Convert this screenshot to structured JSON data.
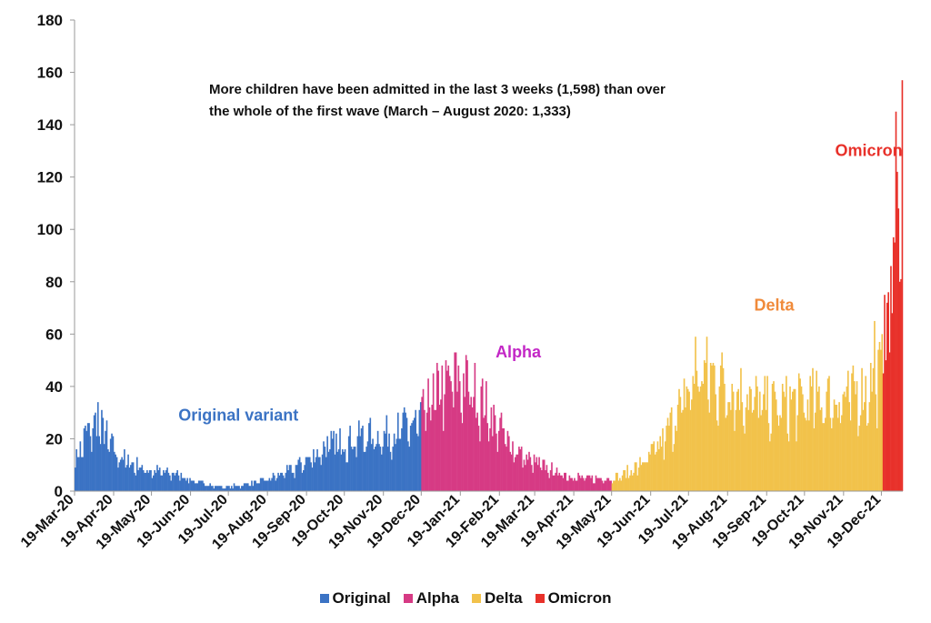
{
  "chart_data": {
    "type": "bar",
    "title": "",
    "xlabel": "",
    "ylabel": "",
    "ylim": [
      0,
      180
    ],
    "yticks": [
      "0",
      "20",
      "40",
      "60",
      "80",
      "100",
      "120",
      "140",
      "160",
      "180"
    ],
    "x_tick_labels": [
      "19-Mar-20",
      "19-Apr-20",
      "19-May-20",
      "19-Jun-20",
      "19-Jul-20",
      "19-Aug-20",
      "19-Sep-20",
      "19-Oct-20",
      "19-Nov-20",
      "19-Dec-20",
      "19-Jan-21",
      "19-Feb-21",
      "19-Mar-21",
      "19-Apr-21",
      "19-May-21",
      "19-Jun-21",
      "19-Jul-21",
      "19-Aug-21",
      "19-Sep-21",
      "19-Oct-21",
      "19-Nov-21",
      "19-Dec-21"
    ],
    "start_date": "2020-03-19",
    "end_date": "2022-01-04",
    "series": [
      {
        "name": "Original",
        "color": "#3b73c4",
        "start": "2020-03-19",
        "end": "2020-12-18",
        "points": [
          [
            0,
            12
          ],
          [
            8,
            22
          ],
          [
            18,
            28
          ],
          [
            32,
            15
          ],
          [
            45,
            11
          ],
          [
            60,
            8
          ],
          [
            80,
            7
          ],
          [
            95,
            4
          ],
          [
            110,
            2
          ],
          [
            125,
            2
          ],
          [
            140,
            3
          ],
          [
            155,
            5
          ],
          [
            170,
            8
          ],
          [
            185,
            13
          ],
          [
            200,
            18
          ],
          [
            215,
            20
          ],
          [
            230,
            22
          ],
          [
            245,
            22
          ],
          [
            255,
            24
          ],
          [
            274,
            28
          ]
        ]
      },
      {
        "name": "Alpha",
        "color": "#d63a84",
        "start": "2020-12-19",
        "end": "2021-05-18",
        "points": [
          [
            275,
            30
          ],
          [
            285,
            38
          ],
          [
            295,
            43
          ],
          [
            305,
            44
          ],
          [
            315,
            41
          ],
          [
            325,
            34
          ],
          [
            335,
            26
          ],
          [
            345,
            19
          ],
          [
            355,
            14
          ],
          [
            365,
            11
          ],
          [
            375,
            9
          ],
          [
            385,
            7
          ],
          [
            395,
            6
          ],
          [
            405,
            5
          ],
          [
            415,
            5
          ],
          [
            425,
            5
          ]
        ]
      },
      {
        "name": "Delta",
        "color": "#f2c24b",
        "start": "2021-05-19",
        "end": "2021-12-19",
        "points": [
          [
            426,
            5
          ],
          [
            436,
            7
          ],
          [
            446,
            10
          ],
          [
            456,
            14
          ],
          [
            466,
            20
          ],
          [
            476,
            30
          ],
          [
            486,
            40
          ],
          [
            496,
            48
          ],
          [
            506,
            46
          ],
          [
            516,
            43
          ],
          [
            526,
            40
          ],
          [
            536,
            37
          ],
          [
            546,
            35
          ],
          [
            556,
            34
          ],
          [
            566,
            35
          ],
          [
            576,
            36
          ],
          [
            586,
            37
          ],
          [
            596,
            37
          ],
          [
            606,
            37
          ],
          [
            616,
            38
          ],
          [
            626,
            40
          ],
          [
            636,
            45
          ],
          [
            640,
            48
          ],
          [
            645,
            53
          ]
        ]
      },
      {
        "name": "Omicron",
        "color": "#e8312a",
        "start": "2021-12-20",
        "end": "2022-01-04",
        "points": [
          [
            641,
            65
          ],
          [
            644,
            68
          ],
          [
            647,
            85
          ],
          [
            650,
            100
          ],
          [
            653,
            115
          ],
          [
            656,
            120
          ],
          [
            658,
            125
          ],
          [
            660,
            128
          ]
        ]
      }
    ],
    "peaks": [
      {
        "series": "Original",
        "day": 18,
        "value": 34
      },
      {
        "series": "Alpha",
        "day": 302,
        "value": 53
      },
      {
        "series": "Delta",
        "day": 492,
        "value": 59
      },
      {
        "series": "Delta",
        "day": 634,
        "value": 65
      },
      {
        "series": "Omicron",
        "day": 651,
        "value": 145
      },
      {
        "series": "Omicron",
        "day": 656,
        "value": 157
      }
    ],
    "annotation": "More children have been admitted in the last 3 weeks (1,598) than over the whole of the first wave (March – August 2020: 1,333)",
    "annotation_lines": [
      "More children have been admitted in the last 3 weeks (1,598) than over",
      "the whole of the first wave (March – August 2020: 1,333)"
    ],
    "variant_labels": [
      {
        "text": "Original variant",
        "color": "#3b73c4",
        "day": 130,
        "value": 27
      },
      {
        "text": "Alpha",
        "color": "#c327c6",
        "day": 352,
        "value": 51
      },
      {
        "text": "Delta",
        "color": "#f08a3a",
        "day": 555,
        "value": 69
      },
      {
        "text": "Omicron",
        "color": "#e8312a",
        "day": 630,
        "value": 128
      }
    ],
    "legend": [
      {
        "label": "Original",
        "color": "#3b73c4"
      },
      {
        "label": "Alpha",
        "color": "#d63a84"
      },
      {
        "label": "Delta",
        "color": "#f2c24b"
      },
      {
        "label": "Omicron",
        "color": "#e8312a"
      }
    ],
    "legend_position": "bottom",
    "grid": false
  }
}
